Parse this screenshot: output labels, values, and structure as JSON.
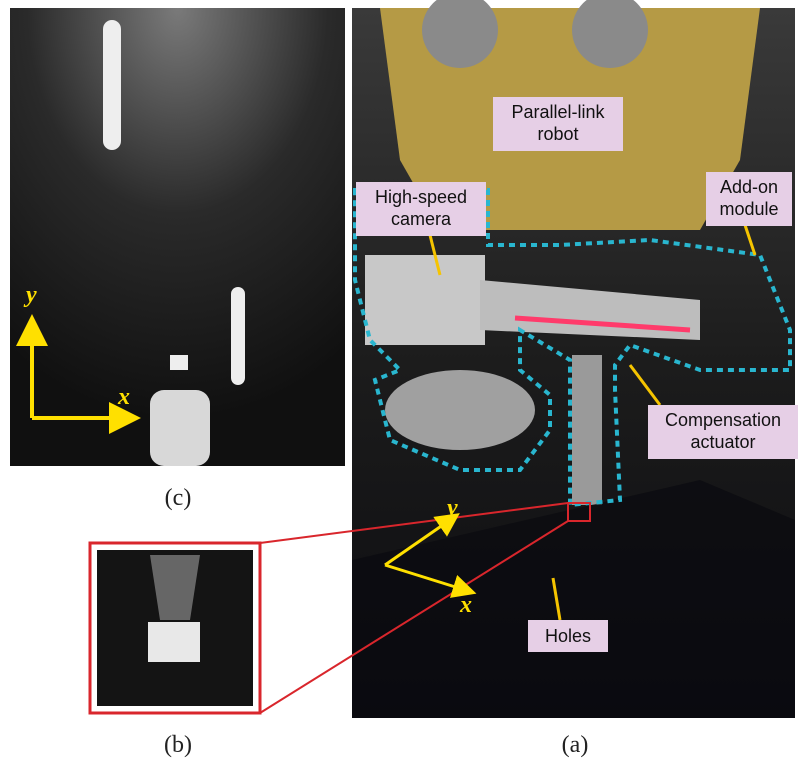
{
  "panels": {
    "c": {
      "caption": "(c)",
      "axes": {
        "y": "y",
        "x": "x"
      }
    },
    "b": {
      "caption": "(b)"
    },
    "a": {
      "caption": "(a)",
      "axes": {
        "y": "y",
        "x": "x"
      },
      "labels": [
        {
          "lines": [
            "Parallel-link",
            "robot"
          ]
        },
        {
          "lines": [
            "High-speed",
            "camera"
          ]
        },
        {
          "lines": [
            "Add-on",
            "module"
          ]
        },
        {
          "lines": [
            "Compensation",
            "actuator"
          ]
        },
        {
          "lines": [
            "Holes"
          ]
        }
      ]
    }
  }
}
